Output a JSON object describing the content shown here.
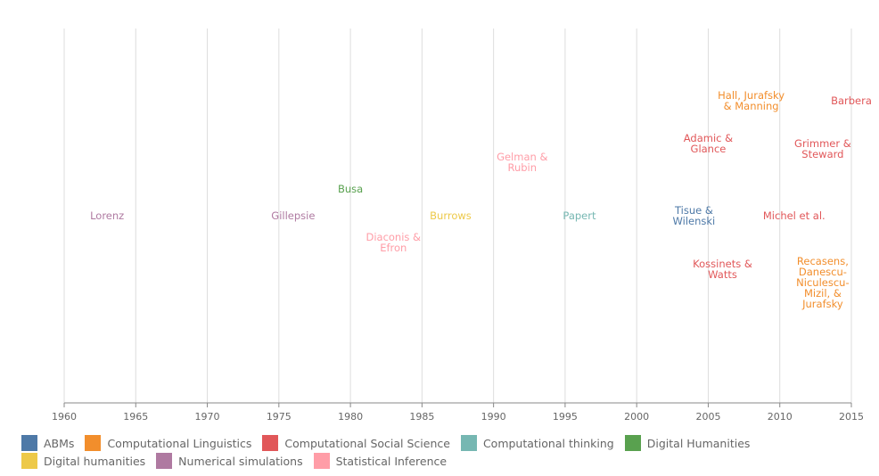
{
  "chart_data": {
    "type": "timeline",
    "title": "",
    "xlabel": "",
    "ylabel": "",
    "xlim": [
      1960,
      2015
    ],
    "xticks": [
      "1960",
      "1965",
      "1970",
      "1975",
      "1980",
      "1985",
      "1990",
      "1995",
      "2000",
      "2005",
      "2010",
      "2015"
    ],
    "grid": "vertical",
    "legend_position": "bottom",
    "categories": [
      {
        "name": "ABMs",
        "color": "#4e79a7"
      },
      {
        "name": "Computational Linguistics",
        "color": "#f28e2c"
      },
      {
        "name": "Computational Social Science",
        "color": "#e15759"
      },
      {
        "name": "Computational thinking",
        "color": "#76b7b2"
      },
      {
        "name": "Digital Humanities",
        "color": "#59a14f"
      },
      {
        "name": "Digital humanities",
        "color": "#edc949"
      },
      {
        "name": "Numerical simulations",
        "color": "#af7aa1"
      },
      {
        "name": "Statistical Inference",
        "color": "#ff9da7"
      }
    ],
    "events": [
      {
        "lines": [
          "Lorenz"
        ],
        "x": 1963,
        "row": 0,
        "category": "Numerical simulations"
      },
      {
        "lines": [
          "Gillepsie"
        ],
        "x": 1976,
        "row": 0,
        "category": "Numerical simulations"
      },
      {
        "lines": [
          "Busa"
        ],
        "x": 1980,
        "row": 1,
        "category": "Digital Humanities"
      },
      {
        "lines": [
          "Diaconis &",
          "Efron"
        ],
        "x": 1983,
        "row": -1,
        "category": "Statistical Inference"
      },
      {
        "lines": [
          "Burrows"
        ],
        "x": 1987,
        "row": 0,
        "category": "Digital humanities"
      },
      {
        "lines": [
          "Gelman &",
          "Rubin"
        ],
        "x": 1992,
        "row": 2,
        "category": "Statistical Inference"
      },
      {
        "lines": [
          "Papert"
        ],
        "x": 1996,
        "row": 0,
        "category": "Computational thinking"
      },
      {
        "lines": [
          "Tisue &",
          "Wilenski"
        ],
        "x": 2004,
        "row": 0,
        "category": "ABMs"
      },
      {
        "lines": [
          "Adamic &",
          "Glance"
        ],
        "x": 2005,
        "row": 2.7,
        "category": "Computational Social Science"
      },
      {
        "lines": [
          "Kossinets &",
          "Watts"
        ],
        "x": 2006,
        "row": -2,
        "category": "Computational Social Science"
      },
      {
        "lines": [
          "Hall, Jurafsky",
          "& Manning"
        ],
        "x": 2008,
        "row": 4.3,
        "category": "Computational Linguistics"
      },
      {
        "lines": [
          "Michel et al."
        ],
        "x": 2011,
        "row": 0,
        "category": "Computational Social Science"
      },
      {
        "lines": [
          "Grimmer &",
          "Steward"
        ],
        "x": 2013,
        "row": 2.5,
        "category": "Computational Social Science"
      },
      {
        "lines": [
          "Recasens,",
          "Danescu-",
          "Niculescu-",
          "Mizil, &",
          "Jurafsky"
        ],
        "x": 2013,
        "row": -2.5,
        "category": "Computational Linguistics"
      },
      {
        "lines": [
          "Barbera"
        ],
        "x": 2015,
        "row": 4.3,
        "category": "Computational Social Science"
      }
    ]
  }
}
